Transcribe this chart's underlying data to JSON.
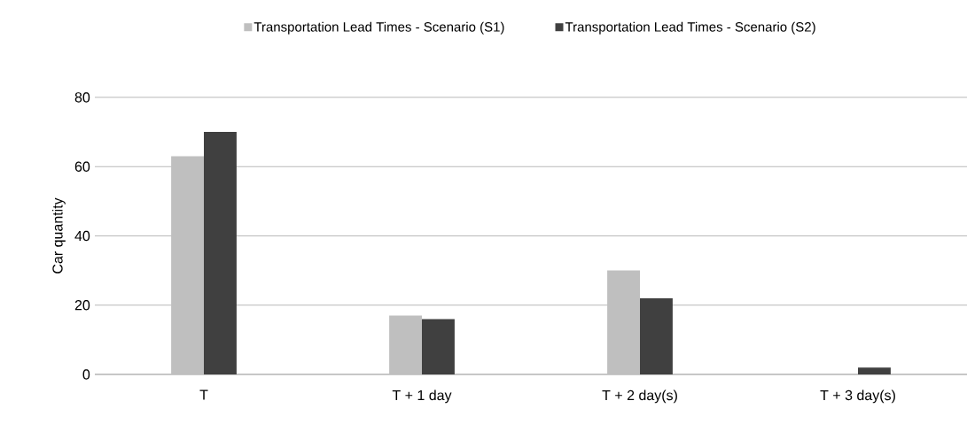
{
  "chart_data": {
    "type": "bar",
    "ylabel": "Car quantity",
    "categories": [
      "T",
      "T + 1 day",
      "T + 2 day(s)",
      "T + 3 day(s)"
    ],
    "series": [
      {
        "name": "Transportation Lead Times - Scenario (S1)",
        "color": "#bfbfbf",
        "values": [
          63,
          17,
          30,
          0
        ]
      },
      {
        "name": "Transportation Lead Times - Scenario (S2)",
        "color": "#404040",
        "values": [
          70,
          16,
          22,
          2
        ]
      }
    ],
    "ylim": [
      0,
      80
    ],
    "yticks": [
      0,
      20,
      40,
      60,
      80
    ],
    "grid": "y",
    "legend": "top"
  }
}
